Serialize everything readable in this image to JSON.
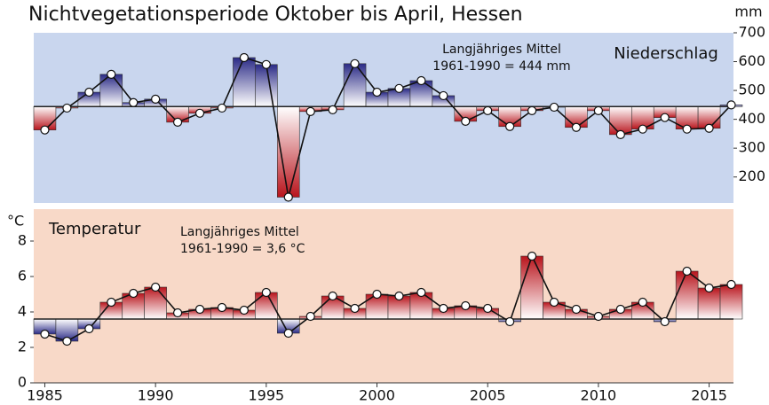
{
  "chart_data": [
    {
      "type": "bar_line",
      "title": "Nichtvegetationsperiode Oktober bis April, Hessen",
      "y_label": "mm",
      "annotation": [
        "Langjähriges Mittel",
        "1961-1990 = 444 mm"
      ],
      "baseline": 444,
      "x": [
        1985,
        1986,
        1987,
        1988,
        1989,
        1990,
        1991,
        1992,
        1993,
        1994,
        1995,
        1996,
        1997,
        1998,
        1999,
        2000,
        2001,
        2002,
        2003,
        2004,
        2005,
        2006,
        2007,
        2008,
        2009,
        2010,
        2011,
        2012,
        2013,
        2014,
        2015,
        2016
      ],
      "series": [
        {
          "name": "Niederschlag",
          "values": [
            363,
            439,
            494,
            556,
            458,
            470,
            390,
            421,
            439,
            614,
            590,
            130,
            427,
            433,
            593,
            494,
            507,
            534,
            482,
            393,
            430,
            375,
            430,
            442,
            372,
            430,
            347,
            366,
            406,
            366,
            369,
            450
          ]
        }
      ],
      "above_color": "#2a2a86",
      "below_color": "#b8141c",
      "background": "#c9d6ee",
      "xlim": [
        1984.5,
        2016.1
      ],
      "ylim": [
        110,
        700
      ],
      "yticks": [
        200,
        300,
        400,
        500,
        600,
        700
      ],
      "yaxis_side": "right"
    },
    {
      "type": "bar_line",
      "y_label": "°C",
      "annotation": [
        "Langjähriges Mittel",
        "1961-1990 = 3,6 °C"
      ],
      "baseline": 3.6,
      "x": [
        1985,
        1986,
        1987,
        1988,
        1989,
        1990,
        1991,
        1992,
        1993,
        1994,
        1995,
        1996,
        1997,
        1998,
        1999,
        2000,
        2001,
        2002,
        2003,
        2004,
        2005,
        2006,
        2007,
        2008,
        2009,
        2010,
        2011,
        2012,
        2013,
        2014,
        2015,
        2016
      ],
      "series": [
        {
          "name": "Temperatur",
          "values": [
            2.75,
            2.35,
            3.05,
            4.55,
            5.05,
            5.4,
            3.95,
            4.15,
            4.25,
            4.1,
            5.1,
            2.8,
            3.75,
            4.9,
            4.2,
            5.0,
            4.9,
            5.1,
            4.2,
            4.35,
            4.2,
            3.45,
            7.15,
            4.55,
            4.15,
            3.75,
            4.15,
            4.55,
            3.45,
            6.3,
            5.35,
            5.55
          ]
        }
      ],
      "above_color": "#b8141c",
      "below_color": "#2a2a86",
      "background": "#f8d9c8",
      "xlim": [
        1984.5,
        2016.1
      ],
      "xticks": [
        1985,
        1990,
        1995,
        2000,
        2005,
        2010,
        2015
      ],
      "ylim": [
        0,
        9.8
      ],
      "yticks": [
        0,
        2,
        4,
        6,
        8
      ],
      "yaxis_side": "left"
    }
  ]
}
